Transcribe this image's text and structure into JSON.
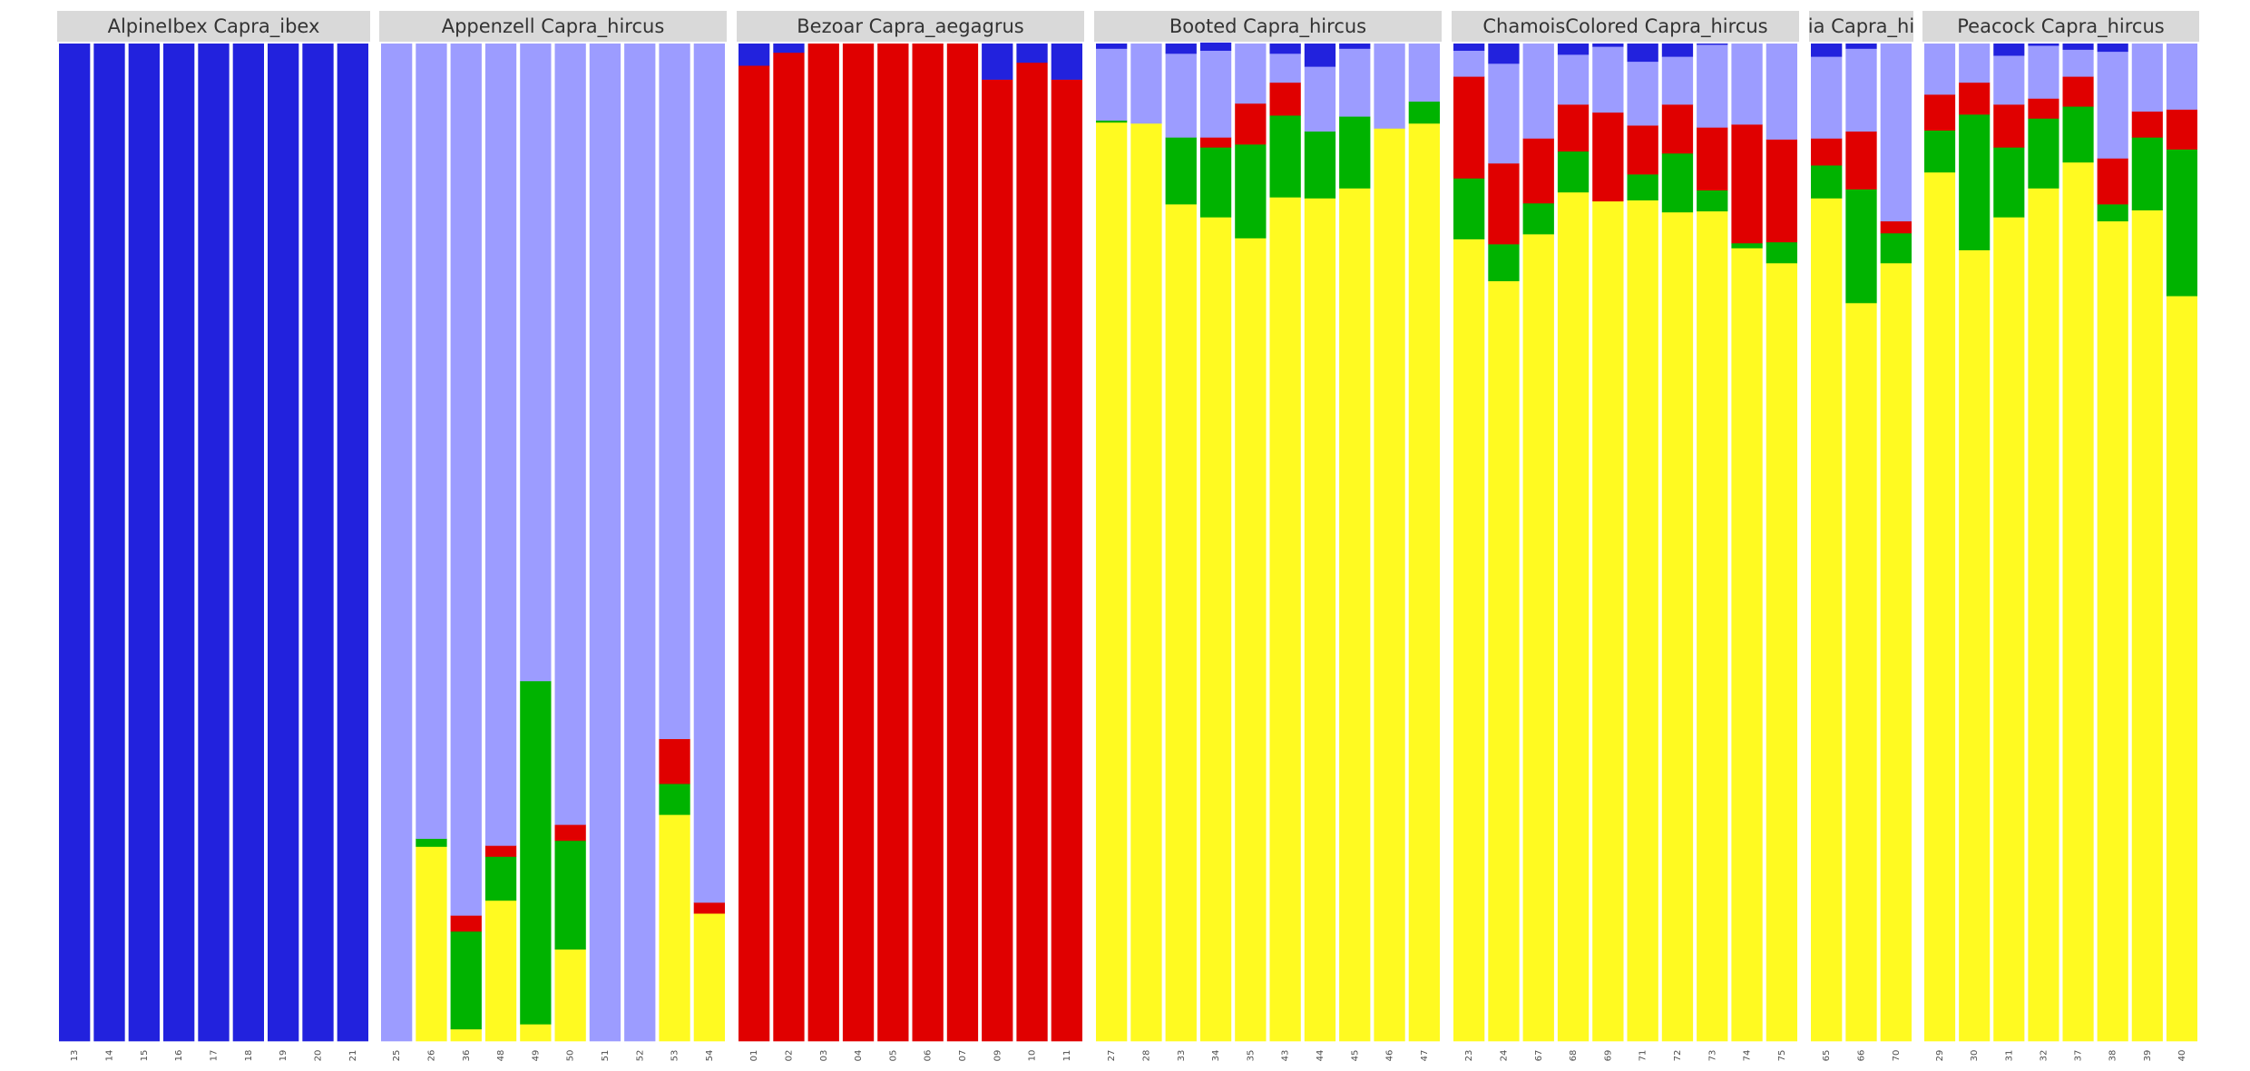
{
  "chart_data": {
    "type": "bar",
    "stacked": true,
    "ylim": [
      0,
      1
    ],
    "grid": false,
    "legend": "none",
    "title": "",
    "xlabel": "",
    "ylabel": "",
    "components": [
      {
        "key": "yellow",
        "color": "#FFFA21"
      },
      {
        "key": "green",
        "color": "#00B300"
      },
      {
        "key": "red",
        "color": "#E00000"
      },
      {
        "key": "lightblue",
        "color": "#9C9CFF"
      },
      {
        "key": "blue",
        "color": "#2222DD"
      }
    ],
    "panels": [
      {
        "label": "AlpineIbex Capra_ibex",
        "samples": [
          {
            "id": "13",
            "q": [
              0,
              0,
              0,
              0,
              1
            ]
          },
          {
            "id": "14",
            "q": [
              0,
              0,
              0,
              0,
              1
            ]
          },
          {
            "id": "15",
            "q": [
              0,
              0,
              0,
              0,
              1
            ]
          },
          {
            "id": "16",
            "q": [
              0,
              0,
              0,
              0,
              1
            ]
          },
          {
            "id": "17",
            "q": [
              0,
              0,
              0,
              0,
              1
            ]
          },
          {
            "id": "18",
            "q": [
              0,
              0,
              0,
              0,
              1
            ]
          },
          {
            "id": "19",
            "q": [
              0,
              0,
              0,
              0,
              1
            ]
          },
          {
            "id": "20",
            "q": [
              0,
              0,
              0,
              0,
              1
            ]
          },
          {
            "id": "21",
            "q": [
              0,
              0,
              0,
              0,
              1
            ]
          }
        ]
      },
      {
        "label": "Appenzell Capra_hircus",
        "samples": [
          {
            "id": "25",
            "q": [
              0,
              0,
              0,
              1,
              0
            ]
          },
          {
            "id": "26",
            "q": [
              0.195,
              0.008,
              0,
              0.797,
              0
            ]
          },
          {
            "id": "36",
            "q": [
              0.012,
              0.098,
              0.016,
              0.874,
              0
            ]
          },
          {
            "id": "48",
            "q": [
              0.141,
              0.044,
              0.011,
              0.804,
              0
            ]
          },
          {
            "id": "49",
            "q": [
              0.017,
              0.344,
              0,
              0.639,
              0
            ]
          },
          {
            "id": "50",
            "q": [
              0.092,
              0.109,
              0.016,
              0.783,
              0
            ]
          },
          {
            "id": "51",
            "q": [
              0,
              0,
              0,
              1,
              0
            ]
          },
          {
            "id": "52",
            "q": [
              0,
              0,
              0,
              1,
              0
            ]
          },
          {
            "id": "53",
            "q": [
              0.227,
              0.031,
              0.045,
              0.697,
              0
            ]
          },
          {
            "id": "54",
            "q": [
              0.128,
              0,
              0.011,
              0.861,
              0
            ]
          }
        ]
      },
      {
        "label": "Bezoar Capra_aegagrus",
        "samples": [
          {
            "id": "01",
            "q": [
              0,
              0,
              0.978,
              0,
              0.022
            ]
          },
          {
            "id": "02",
            "q": [
              0,
              0,
              0.991,
              0,
              0.009
            ]
          },
          {
            "id": "03",
            "q": [
              0,
              0,
              1,
              0,
              0
            ]
          },
          {
            "id": "04",
            "q": [
              0,
              0,
              1,
              0,
              0
            ]
          },
          {
            "id": "05",
            "q": [
              0,
              0,
              1,
              0,
              0
            ]
          },
          {
            "id": "06",
            "q": [
              0,
              0,
              1,
              0,
              0
            ]
          },
          {
            "id": "07",
            "q": [
              0,
              0,
              1,
              0,
              0
            ]
          },
          {
            "id": "09",
            "q": [
              0,
              0,
              0.964,
              0,
              0.036
            ]
          },
          {
            "id": "10",
            "q": [
              0,
              0,
              0.981,
              0,
              0.019
            ]
          },
          {
            "id": "11",
            "q": [
              0,
              0,
              0.964,
              0,
              0.036
            ]
          }
        ]
      },
      {
        "label": "Booted Capra_hircus",
        "samples": [
          {
            "id": "27",
            "q": [
              0.921,
              0.002,
              0,
              0.072,
              0.005
            ]
          },
          {
            "id": "28",
            "q": [
              0.92,
              0,
              0,
              0.08,
              0
            ]
          },
          {
            "id": "33",
            "q": [
              0.839,
              0.067,
              0,
              0.084,
              0.01
            ]
          },
          {
            "id": "34",
            "q": [
              0.826,
              0.07,
              0.01,
              0.087,
              0.008
            ]
          },
          {
            "id": "35",
            "q": [
              0.805,
              0.094,
              0.041,
              0.06,
              0
            ]
          },
          {
            "id": "43",
            "q": [
              0.846,
              0.082,
              0.033,
              0.029,
              0.01
            ]
          },
          {
            "id": "44",
            "q": [
              0.845,
              0.067,
              0,
              0.065,
              0.023
            ]
          },
          {
            "id": "45",
            "q": [
              0.855,
              0.072,
              0,
              0.068,
              0.005
            ]
          },
          {
            "id": "46",
            "q": [
              0.915,
              0,
              0,
              0.085,
              0
            ]
          },
          {
            "id": "47",
            "q": [
              0.92,
              0.022,
              0,
              0.058,
              0
            ]
          }
        ]
      },
      {
        "label": "ChamoisColored Capra_hircus",
        "samples": [
          {
            "id": "23",
            "q": [
              0.804,
              0.061,
              0.102,
              0.026,
              0.007
            ]
          },
          {
            "id": "24",
            "q": [
              0.762,
              0.037,
              0.081,
              0.1,
              0.02
            ]
          },
          {
            "id": "67",
            "q": [
              0.809,
              0.031,
              0.065,
              0.095,
              0
            ]
          },
          {
            "id": "68",
            "q": [
              0.851,
              0.041,
              0.047,
              0.05,
              0.011
            ]
          },
          {
            "id": "69",
            "q": [
              0.842,
              0,
              0.089,
              0.066,
              0.003
            ]
          },
          {
            "id": "71",
            "q": [
              0.843,
              0.026,
              0.049,
              0.064,
              0.018
            ]
          },
          {
            "id": "72",
            "q": [
              0.831,
              0.059,
              0.049,
              0.048,
              0.013
            ]
          },
          {
            "id": "73",
            "q": [
              0.832,
              0.021,
              0.063,
              0.083,
              0.001
            ]
          },
          {
            "id": "74",
            "q": [
              0.795,
              0.005,
              0.119,
              0.081,
              0
            ]
          },
          {
            "id": "75",
            "q": [
              0.78,
              0.021,
              0.103,
              0.096,
              0
            ]
          }
        ]
      },
      {
        "label": "ia Capra_hi",
        "samples": [
          {
            "id": "65",
            "q": [
              0.845,
              0.033,
              0.027,
              0.082,
              0.013
            ]
          },
          {
            "id": "66",
            "q": [
              0.74,
              0.114,
              0.058,
              0.083,
              0.005
            ]
          },
          {
            "id": "70",
            "q": [
              0.78,
              0.03,
              0.012,
              0.178,
              0
            ]
          }
        ]
      },
      {
        "label": "Peacock Capra_hircus",
        "samples": [
          {
            "id": "29",
            "q": [
              0.871,
              0.042,
              0.036,
              0.051,
              0
            ]
          },
          {
            "id": "30",
            "q": [
              0.793,
              0.136,
              0.032,
              0.039,
              0
            ]
          },
          {
            "id": "31",
            "q": [
              0.826,
              0.07,
              0.043,
              0.049,
              0.012
            ]
          },
          {
            "id": "32",
            "q": [
              0.855,
              0.07,
              0.02,
              0.053,
              0.002
            ]
          },
          {
            "id": "37",
            "q": [
              0.881,
              0.056,
              0.03,
              0.027,
              0.006
            ]
          },
          {
            "id": "38",
            "q": [
              0.822,
              0.017,
              0.046,
              0.107,
              0.008
            ]
          },
          {
            "id": "39",
            "q": [
              0.833,
              0.073,
              0.026,
              0.068,
              0
            ]
          },
          {
            "id": "40",
            "q": [
              0.747,
              0.147,
              0.04,
              0.066,
              0
            ]
          }
        ]
      }
    ]
  }
}
